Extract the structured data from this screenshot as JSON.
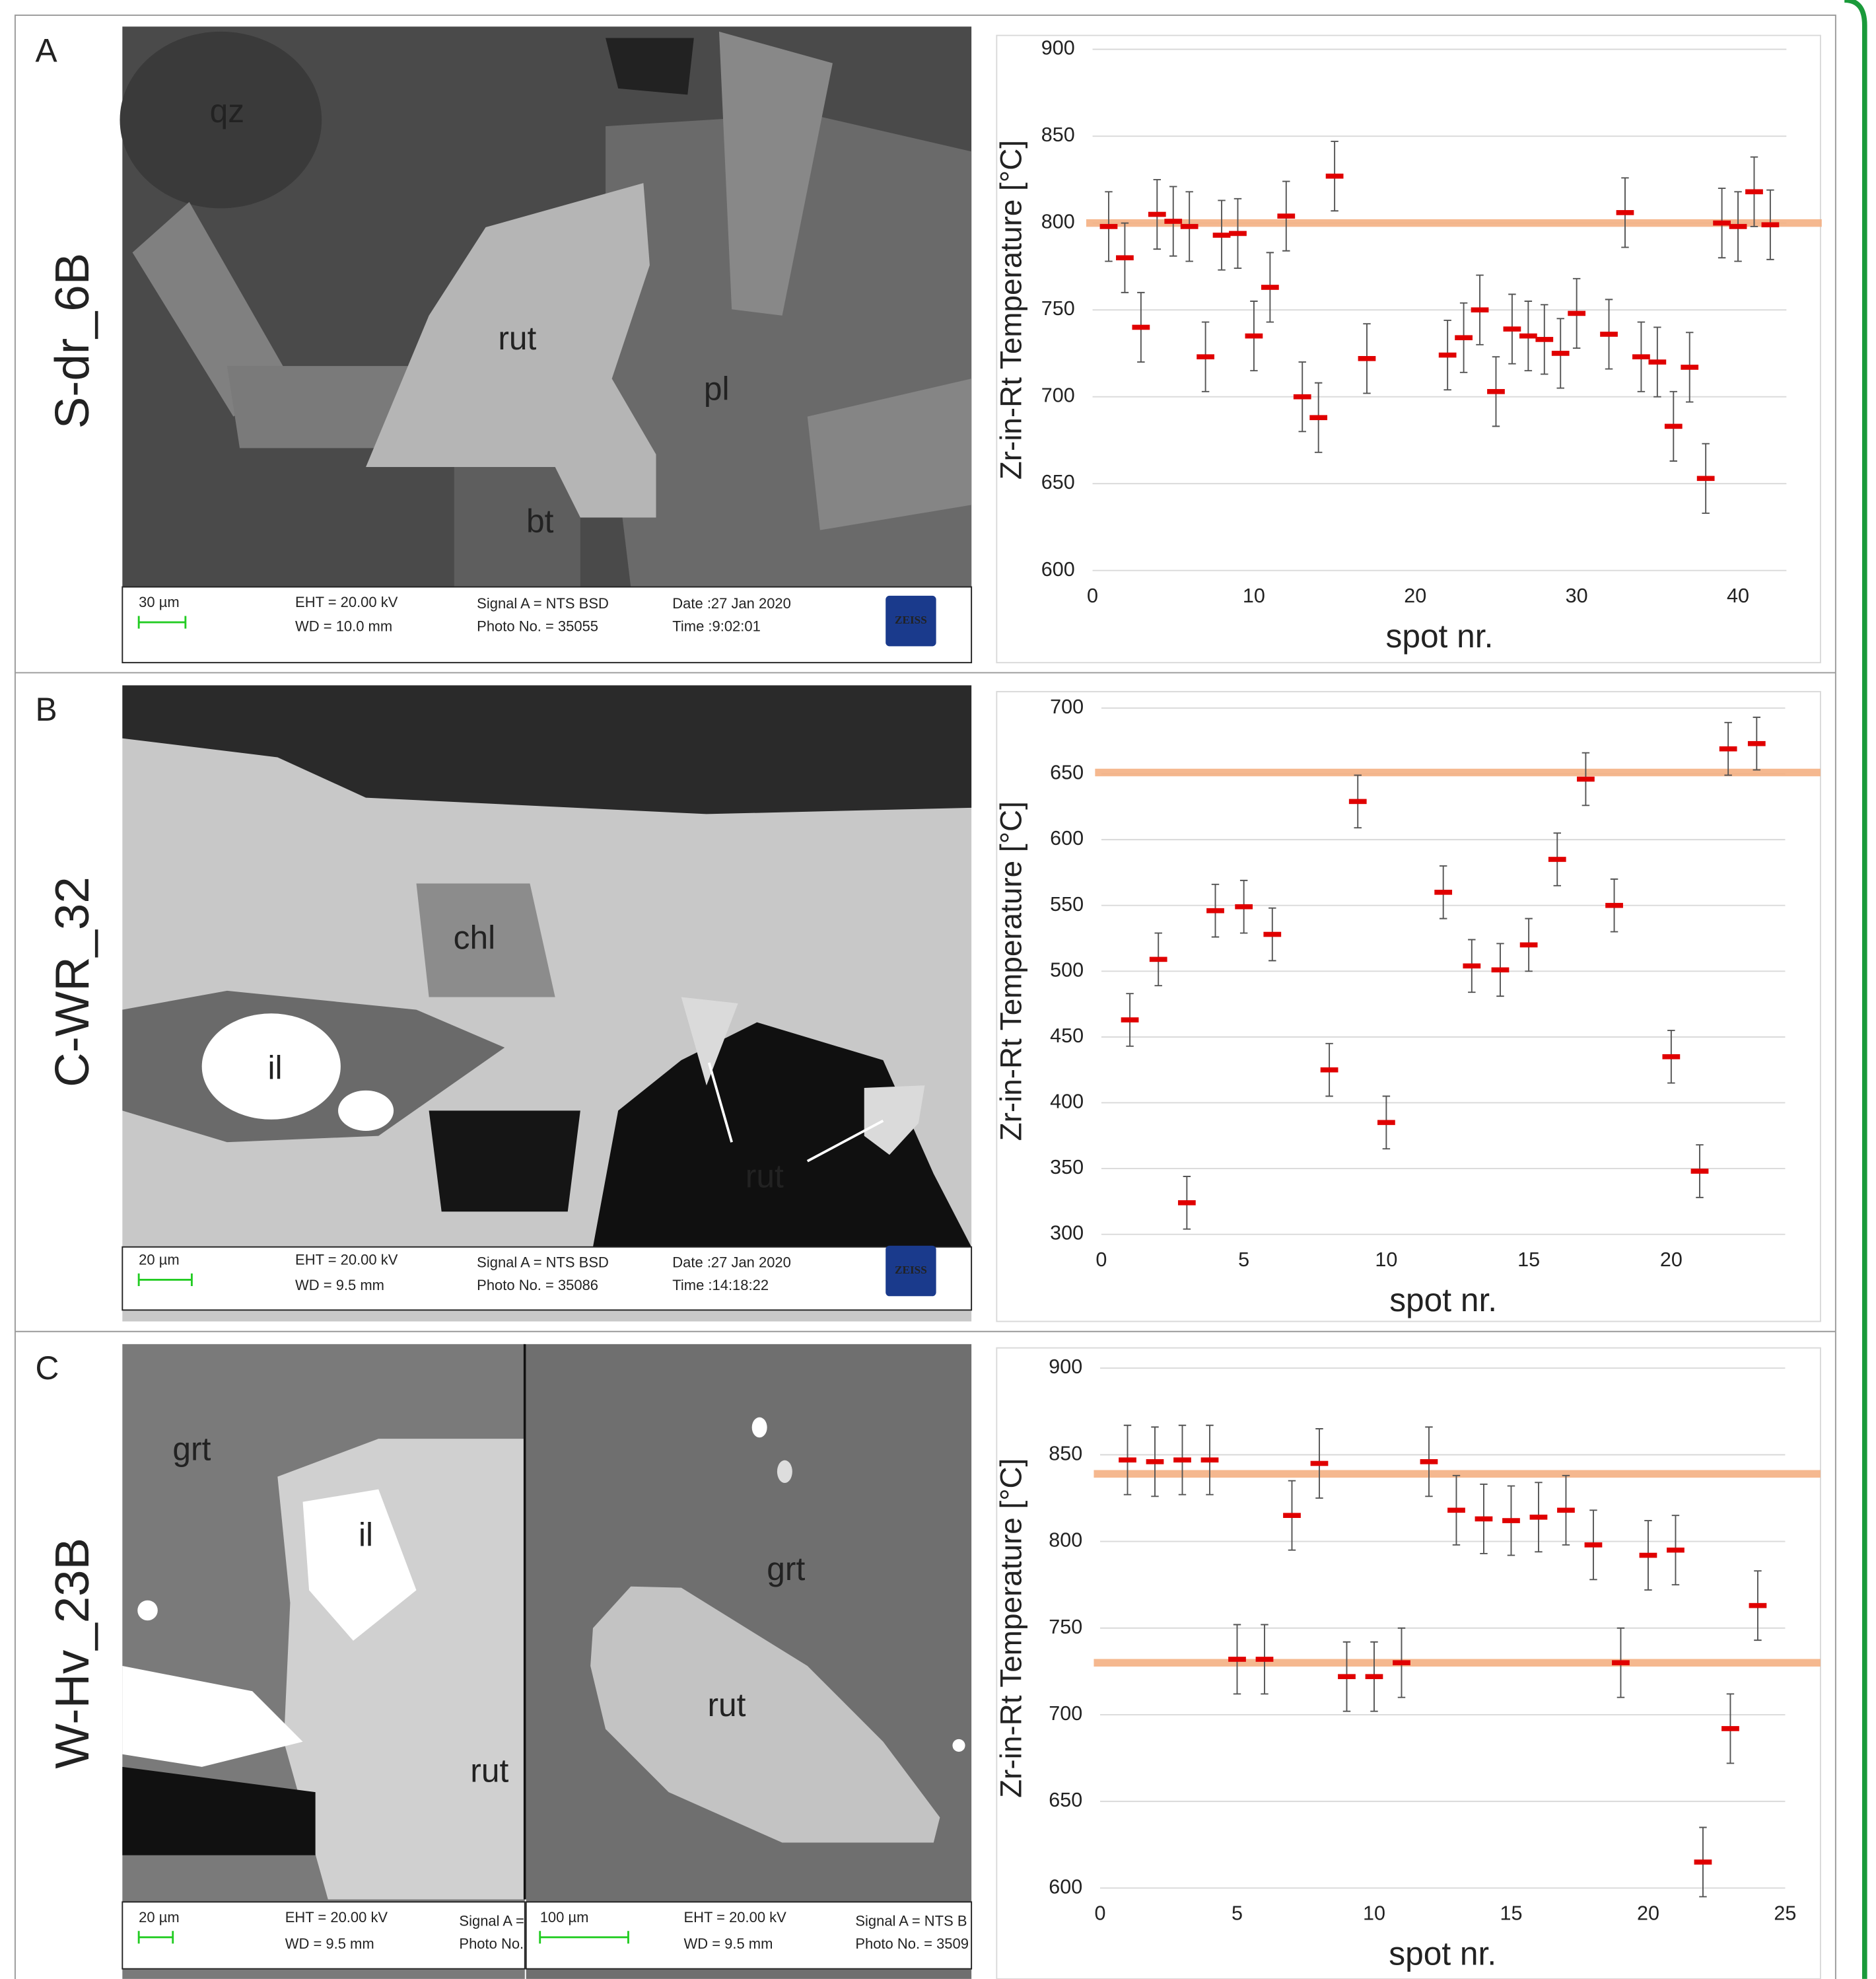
{
  "panels": [
    {
      "label": "A",
      "sample": "S-dr_6B",
      "images": [
        {
          "labels": [
            "qz",
            "rut",
            "pl",
            "bt"
          ],
          "info": [
            "30 µm",
            "EHT = 20.00 kV",
            "WD = 10.0 mm",
            "Signal A = NTS BSD",
            "Photo No. = 35055",
            "Date :27 Jan 2020",
            "Time :9:02:01",
            "ZEISS"
          ]
        }
      ]
    },
    {
      "label": "B",
      "sample": "C-WR_32",
      "images": [
        {
          "labels": [
            "chl",
            "il",
            "rut"
          ],
          "info": [
            "20 µm",
            "EHT = 20.00 kV",
            "WD =  9.5 mm",
            "Signal A = NTS BSD",
            "Photo No. = 35086",
            "Date :27 Jan 2020",
            "Time :14:18:22",
            "ZEISS"
          ]
        }
      ]
    },
    {
      "label": "C",
      "sample": "W-Hv_23B",
      "images": [
        {
          "labels": [
            "grt",
            "il",
            "rut"
          ],
          "info": [
            "20 µm",
            "EHT = 20.00 kV",
            "WD =  9.5 mm",
            "Signal A =",
            "Photo No."
          ]
        },
        {
          "labels": [
            "grt",
            "rut"
          ],
          "info": [
            "100 µm",
            "EHT = 20.00 kV",
            "WD =  9.5 mm",
            "Signal A = NTS B",
            "Photo No. = 3509"
          ]
        }
      ]
    }
  ],
  "chart_data": [
    {
      "type": "scatter",
      "x_label": "spot nr.",
      "y_label": "Zr-in-Rt Temperature [°C]",
      "color": "#e00000",
      "error_color": "#555555",
      "error": 20,
      "x": [
        1,
        2,
        3,
        4,
        5,
        6,
        7,
        8,
        9,
        10,
        11,
        12,
        13,
        14,
        15,
        17,
        22,
        23,
        24,
        25,
        26,
        27,
        28,
        29,
        30,
        32,
        33,
        34,
        35,
        36,
        37,
        38,
        39,
        40,
        41,
        42
      ],
      "values": [
        798,
        780,
        740,
        805,
        801,
        798,
        723,
        793,
        794,
        735,
        763,
        804,
        700,
        688,
        827,
        722,
        724,
        734,
        750,
        703,
        739,
        735,
        733,
        725,
        748,
        736,
        806,
        723,
        720,
        683,
        717,
        653,
        800,
        798,
        818,
        799
      ],
      "reference_lines": [
        {
          "value": 800,
          "color": "#f4b183"
        }
      ],
      "xlim": [
        0,
        43
      ],
      "xticks": [
        0,
        10,
        20,
        30,
        40
      ],
      "ylim": [
        600,
        900
      ],
      "yticks": [
        600,
        650,
        700,
        750,
        800,
        850,
        900
      ],
      "grid": true
    },
    {
      "type": "scatter",
      "x_label": "spot nr.",
      "y_label": "Zr-in-Rt Temperature [°C]",
      "color": "#e00000",
      "error_color": "#555555",
      "error": 20,
      "x": [
        1,
        2,
        3,
        4,
        5,
        6,
        8,
        9,
        10,
        12,
        13,
        14,
        15,
        16,
        17,
        18,
        20,
        21,
        22,
        23
      ],
      "values": [
        463,
        509,
        324,
        546,
        549,
        528,
        425,
        629,
        385,
        560,
        504,
        501,
        520,
        585,
        646,
        550,
        435,
        348,
        669,
        673
      ],
      "reference_lines": [
        {
          "value": 651,
          "color": "#f4b183"
        }
      ],
      "xlim": [
        0,
        24
      ],
      "xticks": [
        0,
        5,
        10,
        15,
        20
      ],
      "ylim": [
        300,
        700
      ],
      "yticks": [
        300,
        350,
        400,
        450,
        500,
        550,
        600,
        650,
        700
      ],
      "grid": true
    },
    {
      "type": "scatter",
      "x_label": "spot nr.",
      "y_label": "Zr-in-Rt Temperature [°C]",
      "color": "#e00000",
      "error_color": "#555555",
      "error": 20,
      "x": [
        1,
        2,
        3,
        4,
        5,
        6,
        7,
        8,
        9,
        10,
        11,
        12,
        13,
        14,
        15,
        16,
        17,
        18,
        19,
        20,
        21,
        22,
        23,
        24
      ],
      "values": [
        847,
        846,
        847,
        847,
        732,
        732,
        815,
        845,
        722,
        722,
        730,
        846,
        818,
        813,
        812,
        814,
        818,
        798,
        730,
        792,
        795,
        615,
        692,
        763
      ],
      "reference_lines": [
        {
          "value": 839,
          "color": "#f4b183"
        },
        {
          "value": 730,
          "color": "#f4b183"
        }
      ],
      "xlim": [
        0,
        25
      ],
      "xticks": [
        0,
        5,
        10,
        15,
        20,
        25
      ],
      "ylim": [
        600,
        900
      ],
      "yticks": [
        600,
        650,
        700,
        750,
        800,
        850,
        900
      ],
      "grid": true
    }
  ]
}
